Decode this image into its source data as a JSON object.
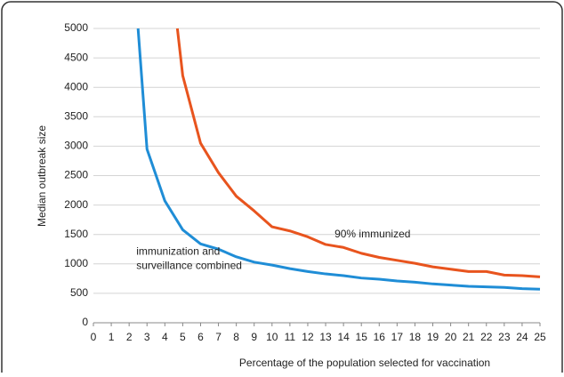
{
  "chart_data": {
    "type": "line",
    "x_label": "Percentage of the population selected for vaccination",
    "y_label": "Median outbreak size",
    "xlim": [
      0,
      25
    ],
    "xticks": [
      0,
      1,
      2,
      3,
      4,
      5,
      6,
      7,
      8,
      9,
      10,
      11,
      12,
      13,
      14,
      15,
      16,
      17,
      18,
      19,
      20,
      21,
      22,
      23,
      24,
      25
    ],
    "ylim": [
      0,
      5000
    ],
    "yticks": [
      0,
      500,
      1000,
      1500,
      2000,
      2500,
      3000,
      3500,
      4000,
      4500,
      5000
    ],
    "grid": true,
    "series": [
      {
        "name": "immunization and surveillance combined",
        "color": "#1f8dd6",
        "x": [
          2.5,
          3,
          4,
          5,
          6,
          7,
          8,
          9,
          10,
          11,
          12,
          13,
          14,
          15,
          16,
          17,
          18,
          19,
          20,
          21,
          22,
          23,
          24,
          25
        ],
        "values": [
          5000,
          2950,
          2070,
          1580,
          1340,
          1250,
          1120,
          1030,
          980,
          920,
          870,
          830,
          800,
          760,
          740,
          710,
          690,
          660,
          640,
          620,
          610,
          600,
          580,
          570
        ]
      },
      {
        "name": "90% immunized",
        "color": "#e8541e",
        "x": [
          4.7,
          5,
          6,
          7,
          8,
          9,
          10,
          11,
          12,
          13,
          14,
          15,
          16,
          17,
          18,
          19,
          20,
          21,
          22,
          23,
          24,
          25
        ],
        "values": [
          5000,
          4200,
          3050,
          2550,
          2150,
          1900,
          1630,
          1560,
          1460,
          1330,
          1280,
          1180,
          1110,
          1060,
          1010,
          950,
          910,
          870,
          870,
          810,
          800,
          780
        ]
      }
    ],
    "annotations": [
      {
        "lines": [
          "90% immunized"
        ],
        "x": 13.5,
        "y": 1500
      },
      {
        "lines": [
          "immunization and",
          "surveillance combined"
        ],
        "x": 2.4,
        "y": 1200
      }
    ]
  }
}
